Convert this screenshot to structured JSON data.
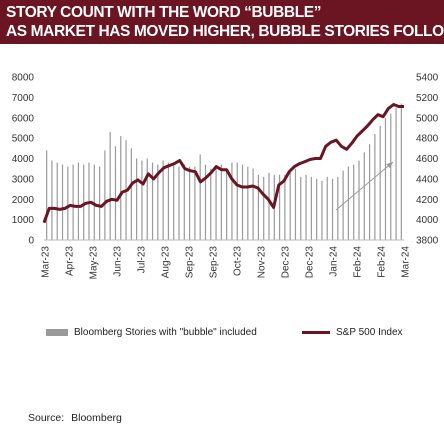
{
  "header": {
    "title_line1": "STORY COUNT WITH THE WORD “BUBBLE”",
    "title_line2": "AS MARKET HAS MOVED HIGHER, BUBBLE STORIES FOLLOW"
  },
  "legend": {
    "bars_label": "Bloomberg Stories with \"bubble\" included",
    "line_label": "S&P 500 Index"
  },
  "source": {
    "label": "Source:",
    "value": "Bloomberg"
  },
  "colors": {
    "banner": "#6b1422",
    "line": "#6b1422",
    "bars": "#9a9a9a",
    "arrow": "#999999"
  },
  "chart_data": {
    "type": "bar+line",
    "title": "",
    "xlabel": "",
    "ylabel": "",
    "y_left": {
      "ylim": [
        0,
        8000
      ],
      "ticks": [
        0,
        1000,
        2000,
        3000,
        4000,
        5000,
        6000,
        7000,
        8000
      ]
    },
    "y_right": {
      "ylim": [
        3800,
        5400
      ],
      "ticks": [
        3800,
        4000,
        4200,
        4400,
        4600,
        4800,
        5000,
        5200,
        5400
      ]
    },
    "x_tick_labels": [
      "Mar-23",
      "Apr-23",
      "May-23",
      "Jun-23",
      "Jul-23",
      "Aug-23",
      "Sep-23",
      "Sep-23",
      "Oct-23",
      "Nov-23",
      "Dec-23",
      "Dec-23",
      "Jan-24",
      "Feb-24",
      "Feb-24",
      "Mar-24"
    ],
    "grid": false,
    "legend_position": "bottom",
    "series": [
      {
        "name": "Bloomberg Stories with \"bubble\" included",
        "type": "bar",
        "axis": "left",
        "values": [
          4400,
          3900,
          3800,
          3700,
          3600,
          3700,
          3800,
          3700,
          3800,
          3700,
          3600,
          4400,
          5300,
          4600,
          5100,
          4900,
          4500,
          4000,
          3900,
          4000,
          3800,
          3700,
          3900,
          3800,
          3700,
          3600,
          3700,
          3600,
          3600,
          4200,
          3700,
          3500,
          3600,
          3700,
          3500,
          3800,
          3800,
          3700,
          3600,
          3500,
          3200,
          3100,
          3300,
          3200,
          3200,
          3200,
          3400,
          3500,
          3100,
          3200,
          3100,
          3000,
          2900,
          3100,
          3000,
          3100,
          3400,
          3600,
          3700,
          3900,
          4300,
          4700,
          5200,
          5600,
          6000,
          6200,
          6500,
          6700
        ]
      },
      {
        "name": "S&P 500 Index",
        "type": "line",
        "axis": "right",
        "values": [
          3970,
          4110,
          4110,
          4100,
          4110,
          4140,
          4130,
          4130,
          4160,
          4170,
          4140,
          4130,
          4180,
          4200,
          4190,
          4270,
          4290,
          4360,
          4390,
          4350,
          4450,
          4400,
          4460,
          4510,
          4530,
          4550,
          4580,
          4500,
          4480,
          4470,
          4370,
          4410,
          4460,
          4520,
          4490,
          4490,
          4400,
          4340,
          4320,
          4320,
          4330,
          4310,
          4250,
          4200,
          4120,
          4340,
          4380,
          4470,
          4520,
          4550,
          4570,
          4590,
          4600,
          4600,
          4720,
          4760,
          4780,
          4720,
          4690,
          4750,
          4820,
          4870,
          4920,
          4980,
          5030,
          5010,
          5090,
          5130,
          5110,
          5110
        ]
      }
    ],
    "annotation": {
      "type": "arrow",
      "direction": "up-right"
    }
  }
}
